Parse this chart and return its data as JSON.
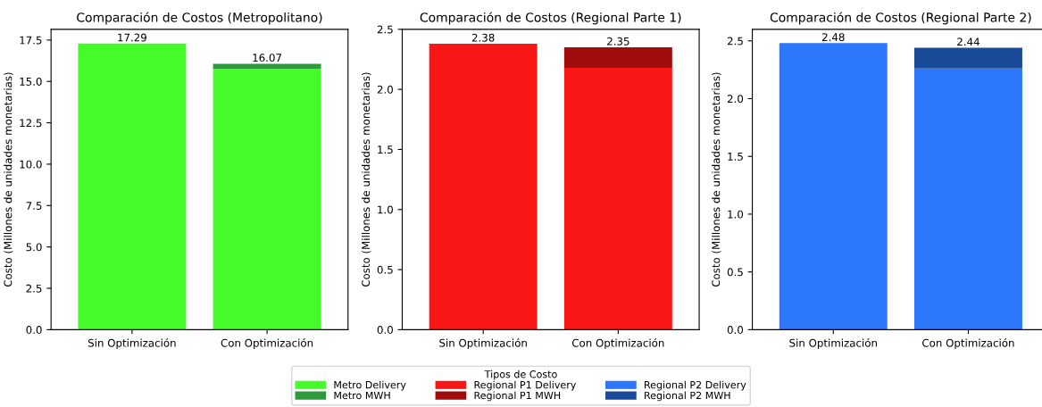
{
  "chart_data": [
    {
      "type": "bar",
      "title": "Comparación de Costos (Metropolitano)",
      "ylabel": "Costo (Millones de unidades monetarias)",
      "categories": [
        "Sin Optimización",
        "Con Optimización"
      ],
      "stacked": true,
      "series": [
        {
          "name": "Metro Delivery",
          "color": "#45fc2a",
          "values": [
            17.29,
            15.75
          ]
        },
        {
          "name": "Metro MWH",
          "color": "#2e9a3b",
          "values": [
            null,
            0.32
          ]
        }
      ],
      "totals": [
        "17.29",
        "16.07"
      ],
      "ylim": [
        0,
        18.15
      ],
      "yticks": [
        {
          "value": 0,
          "label": "0.0"
        },
        {
          "value": 2.5,
          "label": "2.5"
        },
        {
          "value": 5,
          "label": "5.0"
        },
        {
          "value": 7.5,
          "label": "7.5"
        },
        {
          "value": 10,
          "label": "10.0"
        },
        {
          "value": 12.5,
          "label": "12.5"
        },
        {
          "value": 15,
          "label": "15.0"
        },
        {
          "value": 17.5,
          "label": "17.5"
        }
      ],
      "legend": "bottom",
      "legend_title": "Tipos de Costo"
    },
    {
      "type": "bar",
      "title": "Comparación de Costos (Regional Parte 1)",
      "ylabel": "Costo (Millones de unidades monetarias)",
      "categories": [
        "Sin Optimización",
        "Con Optimización"
      ],
      "stacked": true,
      "series": [
        {
          "name": "Regional P1 Delivery",
          "color": "#f91616",
          "values": [
            2.38,
            2.18
          ]
        },
        {
          "name": "Regional P1 MWH",
          "color": "#a00b0b",
          "values": [
            null,
            0.17
          ]
        }
      ],
      "totals": [
        "2.38",
        "2.35"
      ],
      "ylim": [
        0,
        2.5
      ],
      "yticks": [
        {
          "value": 0,
          "label": "0.0"
        },
        {
          "value": 0.5,
          "label": "0.5"
        },
        {
          "value": 1,
          "label": "1.0"
        },
        {
          "value": 1.5,
          "label": "1.5"
        },
        {
          "value": 2,
          "label": "2.0"
        },
        {
          "value": 2.5,
          "label": "2.5"
        }
      ],
      "legend": "bottom"
    },
    {
      "type": "bar",
      "title": "Comparación de Costos (Regional Parte 2)",
      "ylabel": "Costo (Millones de unidades monetarias)",
      "categories": [
        "Sin Optimización",
        "Con Optimización"
      ],
      "stacked": true,
      "series": [
        {
          "name": "Regional P2 Delivery",
          "color": "#2d77fb",
          "values": [
            2.48,
            2.26
          ]
        },
        {
          "name": "Regional P2 MWH",
          "color": "#1a4b98",
          "values": [
            null,
            0.18
          ]
        }
      ],
      "totals": [
        "2.48",
        "2.44"
      ],
      "ylim": [
        0,
        2.6
      ],
      "yticks": [
        {
          "value": 0,
          "label": "0.0"
        },
        {
          "value": 0.5,
          "label": "0.5"
        },
        {
          "value": 1,
          "label": "1.0"
        },
        {
          "value": 1.5,
          "label": "1.5"
        },
        {
          "value": 2,
          "label": "2.0"
        },
        {
          "value": 2.5,
          "label": "2.5"
        }
      ],
      "legend": "bottom"
    }
  ]
}
